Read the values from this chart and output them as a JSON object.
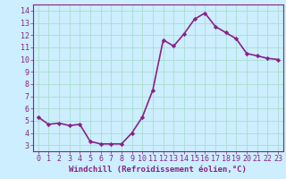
{
  "x": [
    0,
    1,
    2,
    3,
    4,
    5,
    6,
    7,
    8,
    9,
    10,
    11,
    12,
    13,
    14,
    15,
    16,
    17,
    18,
    19,
    20,
    21,
    22,
    23
  ],
  "y": [
    5.3,
    4.7,
    4.8,
    4.6,
    4.7,
    3.3,
    3.1,
    3.1,
    3.1,
    4.0,
    5.3,
    7.5,
    11.6,
    11.1,
    12.1,
    13.3,
    13.8,
    12.7,
    12.2,
    11.7,
    10.5,
    10.3,
    10.1,
    10.0
  ],
  "line_color": "#882288",
  "marker": "D",
  "marker_size": 2.2,
  "bg_color": "#cceeff",
  "grid_color": "#aaddcc",
  "xlabel": "Windchill (Refroidissement éolien,°C)",
  "xlim": [
    -0.5,
    23.5
  ],
  "ylim": [
    2.5,
    14.5
  ],
  "yticks": [
    3,
    4,
    5,
    6,
    7,
    8,
    9,
    10,
    11,
    12,
    13,
    14
  ],
  "xticks": [
    0,
    1,
    2,
    3,
    4,
    5,
    6,
    7,
    8,
    9,
    10,
    11,
    12,
    13,
    14,
    15,
    16,
    17,
    18,
    19,
    20,
    21,
    22,
    23
  ],
  "xtick_labels": [
    "0",
    "1",
    "2",
    "3",
    "4",
    "5",
    "6",
    "7",
    "8",
    "9",
    "10",
    "11",
    "12",
    "13",
    "14",
    "15",
    "16",
    "17",
    "18",
    "19",
    "20",
    "21",
    "22",
    "23"
  ],
  "tick_color": "#882288",
  "xlabel_color": "#882288",
  "xlabel_fontsize": 6.5,
  "tick_fontsize": 6.0,
  "line_width": 1.2,
  "spine_color": "#882288"
}
